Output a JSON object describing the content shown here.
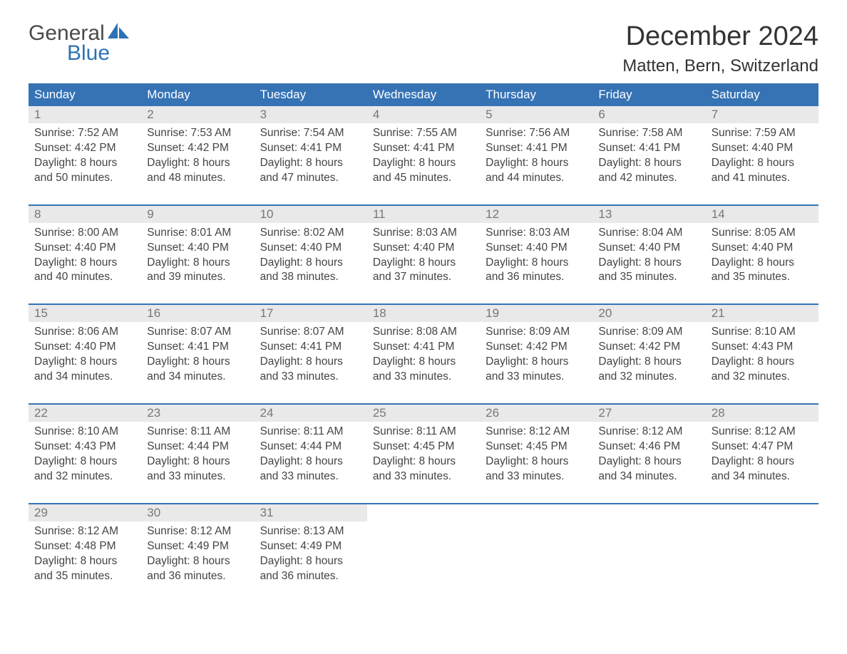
{
  "logo": {
    "word1": "General",
    "word2": "Blue"
  },
  "title": "December 2024",
  "location": "Matten, Bern, Switzerland",
  "colors": {
    "header_bg": "#3573b5",
    "header_text": "#ffffff",
    "daynum_bg": "#e9e9e9",
    "daynum_text": "#777777",
    "body_text": "#444444",
    "title_text": "#333333",
    "logo_gray": "#4a4a4a",
    "logo_blue": "#2e72b5",
    "page_bg": "#ffffff",
    "week_border": "#3573b5"
  },
  "typography": {
    "title_fontsize": 38,
    "location_fontsize": 24,
    "dow_fontsize": 17,
    "daynum_fontsize": 17,
    "cell_fontsize": 15.5,
    "logo_fontsize": 30
  },
  "days_of_week": [
    "Sunday",
    "Monday",
    "Tuesday",
    "Wednesday",
    "Thursday",
    "Friday",
    "Saturday"
  ],
  "weeks": [
    [
      {
        "n": "1",
        "sunrise": "Sunrise: 7:52 AM",
        "sunset": "Sunset: 4:42 PM",
        "day1": "Daylight: 8 hours",
        "day2": "and 50 minutes."
      },
      {
        "n": "2",
        "sunrise": "Sunrise: 7:53 AM",
        "sunset": "Sunset: 4:42 PM",
        "day1": "Daylight: 8 hours",
        "day2": "and 48 minutes."
      },
      {
        "n": "3",
        "sunrise": "Sunrise: 7:54 AM",
        "sunset": "Sunset: 4:41 PM",
        "day1": "Daylight: 8 hours",
        "day2": "and 47 minutes."
      },
      {
        "n": "4",
        "sunrise": "Sunrise: 7:55 AM",
        "sunset": "Sunset: 4:41 PM",
        "day1": "Daylight: 8 hours",
        "day2": "and 45 minutes."
      },
      {
        "n": "5",
        "sunrise": "Sunrise: 7:56 AM",
        "sunset": "Sunset: 4:41 PM",
        "day1": "Daylight: 8 hours",
        "day2": "and 44 minutes."
      },
      {
        "n": "6",
        "sunrise": "Sunrise: 7:58 AM",
        "sunset": "Sunset: 4:41 PM",
        "day1": "Daylight: 8 hours",
        "day2": "and 42 minutes."
      },
      {
        "n": "7",
        "sunrise": "Sunrise: 7:59 AM",
        "sunset": "Sunset: 4:40 PM",
        "day1": "Daylight: 8 hours",
        "day2": "and 41 minutes."
      }
    ],
    [
      {
        "n": "8",
        "sunrise": "Sunrise: 8:00 AM",
        "sunset": "Sunset: 4:40 PM",
        "day1": "Daylight: 8 hours",
        "day2": "and 40 minutes."
      },
      {
        "n": "9",
        "sunrise": "Sunrise: 8:01 AM",
        "sunset": "Sunset: 4:40 PM",
        "day1": "Daylight: 8 hours",
        "day2": "and 39 minutes."
      },
      {
        "n": "10",
        "sunrise": "Sunrise: 8:02 AM",
        "sunset": "Sunset: 4:40 PM",
        "day1": "Daylight: 8 hours",
        "day2": "and 38 minutes."
      },
      {
        "n": "11",
        "sunrise": "Sunrise: 8:03 AM",
        "sunset": "Sunset: 4:40 PM",
        "day1": "Daylight: 8 hours",
        "day2": "and 37 minutes."
      },
      {
        "n": "12",
        "sunrise": "Sunrise: 8:03 AM",
        "sunset": "Sunset: 4:40 PM",
        "day1": "Daylight: 8 hours",
        "day2": "and 36 minutes."
      },
      {
        "n": "13",
        "sunrise": "Sunrise: 8:04 AM",
        "sunset": "Sunset: 4:40 PM",
        "day1": "Daylight: 8 hours",
        "day2": "and 35 minutes."
      },
      {
        "n": "14",
        "sunrise": "Sunrise: 8:05 AM",
        "sunset": "Sunset: 4:40 PM",
        "day1": "Daylight: 8 hours",
        "day2": "and 35 minutes."
      }
    ],
    [
      {
        "n": "15",
        "sunrise": "Sunrise: 8:06 AM",
        "sunset": "Sunset: 4:40 PM",
        "day1": "Daylight: 8 hours",
        "day2": "and 34 minutes."
      },
      {
        "n": "16",
        "sunrise": "Sunrise: 8:07 AM",
        "sunset": "Sunset: 4:41 PM",
        "day1": "Daylight: 8 hours",
        "day2": "and 34 minutes."
      },
      {
        "n": "17",
        "sunrise": "Sunrise: 8:07 AM",
        "sunset": "Sunset: 4:41 PM",
        "day1": "Daylight: 8 hours",
        "day2": "and 33 minutes."
      },
      {
        "n": "18",
        "sunrise": "Sunrise: 8:08 AM",
        "sunset": "Sunset: 4:41 PM",
        "day1": "Daylight: 8 hours",
        "day2": "and 33 minutes."
      },
      {
        "n": "19",
        "sunrise": "Sunrise: 8:09 AM",
        "sunset": "Sunset: 4:42 PM",
        "day1": "Daylight: 8 hours",
        "day2": "and 33 minutes."
      },
      {
        "n": "20",
        "sunrise": "Sunrise: 8:09 AM",
        "sunset": "Sunset: 4:42 PM",
        "day1": "Daylight: 8 hours",
        "day2": "and 32 minutes."
      },
      {
        "n": "21",
        "sunrise": "Sunrise: 8:10 AM",
        "sunset": "Sunset: 4:43 PM",
        "day1": "Daylight: 8 hours",
        "day2": "and 32 minutes."
      }
    ],
    [
      {
        "n": "22",
        "sunrise": "Sunrise: 8:10 AM",
        "sunset": "Sunset: 4:43 PM",
        "day1": "Daylight: 8 hours",
        "day2": "and 32 minutes."
      },
      {
        "n": "23",
        "sunrise": "Sunrise: 8:11 AM",
        "sunset": "Sunset: 4:44 PM",
        "day1": "Daylight: 8 hours",
        "day2": "and 33 minutes."
      },
      {
        "n": "24",
        "sunrise": "Sunrise: 8:11 AM",
        "sunset": "Sunset: 4:44 PM",
        "day1": "Daylight: 8 hours",
        "day2": "and 33 minutes."
      },
      {
        "n": "25",
        "sunrise": "Sunrise: 8:11 AM",
        "sunset": "Sunset: 4:45 PM",
        "day1": "Daylight: 8 hours",
        "day2": "and 33 minutes."
      },
      {
        "n": "26",
        "sunrise": "Sunrise: 8:12 AM",
        "sunset": "Sunset: 4:45 PM",
        "day1": "Daylight: 8 hours",
        "day2": "and 33 minutes."
      },
      {
        "n": "27",
        "sunrise": "Sunrise: 8:12 AM",
        "sunset": "Sunset: 4:46 PM",
        "day1": "Daylight: 8 hours",
        "day2": "and 34 minutes."
      },
      {
        "n": "28",
        "sunrise": "Sunrise: 8:12 AM",
        "sunset": "Sunset: 4:47 PM",
        "day1": "Daylight: 8 hours",
        "day2": "and 34 minutes."
      }
    ],
    [
      {
        "n": "29",
        "sunrise": "Sunrise: 8:12 AM",
        "sunset": "Sunset: 4:48 PM",
        "day1": "Daylight: 8 hours",
        "day2": "and 35 minutes."
      },
      {
        "n": "30",
        "sunrise": "Sunrise: 8:12 AM",
        "sunset": "Sunset: 4:49 PM",
        "day1": "Daylight: 8 hours",
        "day2": "and 36 minutes."
      },
      {
        "n": "31",
        "sunrise": "Sunrise: 8:13 AM",
        "sunset": "Sunset: 4:49 PM",
        "day1": "Daylight: 8 hours",
        "day2": "and 36 minutes."
      },
      null,
      null,
      null,
      null
    ]
  ]
}
